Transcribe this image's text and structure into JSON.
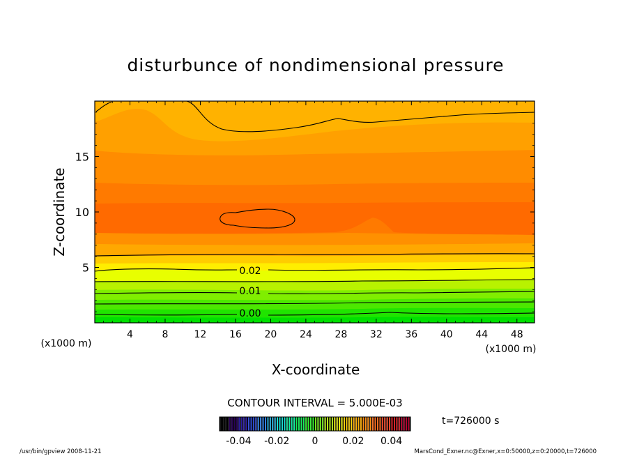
{
  "chart_data": {
    "type": "contour",
    "title": "disturbunce of nondimensional pressure",
    "xlabel": "X-coordinate",
    "ylabel": "Z-coordinate",
    "x_unit_left": "(x1000 m)",
    "x_unit_right": "(x1000 m)",
    "x_ticks": [
      4,
      8,
      12,
      16,
      20,
      24,
      28,
      32,
      36,
      40,
      44,
      48
    ],
    "y_ticks": [
      5,
      10,
      15
    ],
    "xlim": [
      0,
      50
    ],
    "ylim": [
      0,
      20
    ],
    "contour_labels": [
      {
        "text": "0.02",
        "x": 19.5,
        "z": 4.8
      },
      {
        "text": "0.01",
        "x": 19.5,
        "z": 2.9
      },
      {
        "text": "0.00",
        "x": 19.5,
        "z": 1.0
      }
    ],
    "contour_interval_text": "CONTOUR INTERVAL = 5.000E-03",
    "time_text": "t=726000 s",
    "colorbar": {
      "ticks": [
        "-0.04",
        "-0.02",
        "0",
        "0.02",
        "0.04"
      ],
      "tick_values": [
        -0.04,
        -0.02,
        0,
        0.02,
        0.04
      ],
      "range": [
        -0.05,
        0.05
      ],
      "colors": [
        "#000000",
        "#2a005a",
        "#2c1aa6",
        "#2a48d6",
        "#2a7ee6",
        "#22b4e6",
        "#10e2d8",
        "#10f0a4",
        "#16f45c",
        "#2ef22a",
        "#74f21a",
        "#b8f212",
        "#eef20e",
        "#ffd20a",
        "#ffb00a",
        "#ff8e12",
        "#ff6a1a",
        "#f64422",
        "#e01a22",
        "#b8002e"
      ]
    },
    "footer_left": "/usr/bin/gpview   2008-11-21",
    "footer_right": "MarsCond_Exner.nc@Exner,x=0:50000,z=0:20000,t=726000"
  }
}
